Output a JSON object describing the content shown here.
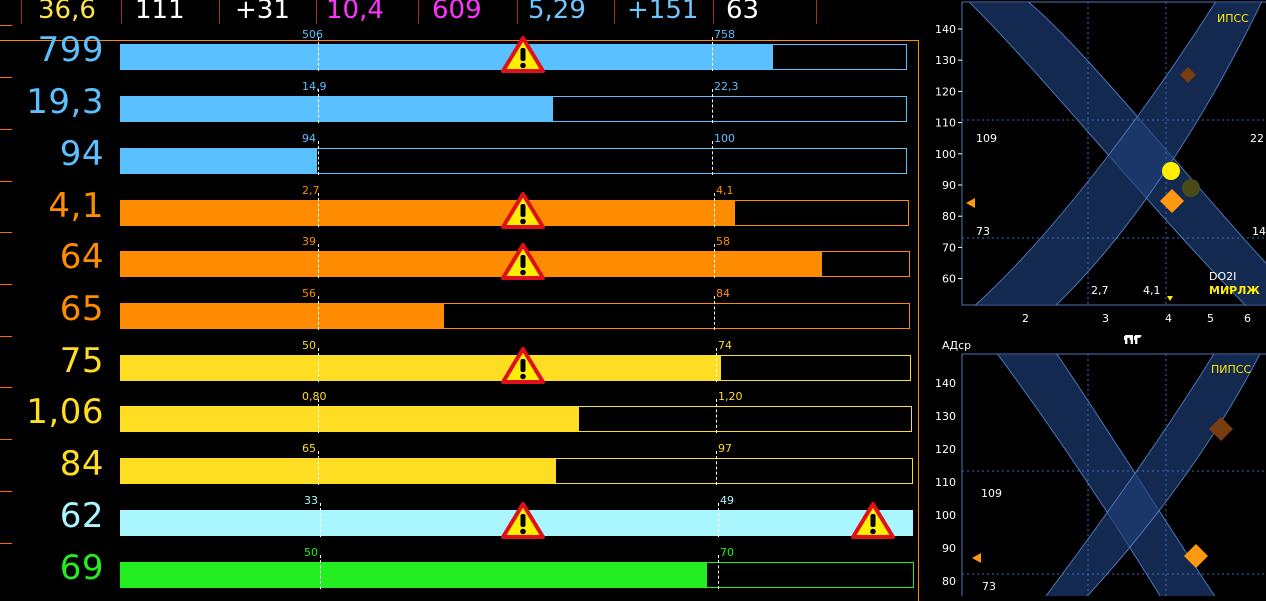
{
  "top_values": [
    {
      "text": "36,6",
      "color": "#ffe34d"
    },
    {
      "text": "111",
      "color": "#ffffff"
    },
    {
      "text": "+31",
      "color": "#ffffff"
    },
    {
      "text": "10,4",
      "color": "#ff33ff"
    },
    {
      "text": "609",
      "color": "#ff33ff"
    },
    {
      "text": "5,29",
      "color": "#6ec6ff"
    },
    {
      "text": "+151",
      "color": "#6ec6ff"
    },
    {
      "text": "63",
      "color": "#ffffff"
    }
  ],
  "rows": [
    {
      "value": "799",
      "color": "#5bc0ff",
      "low": "506",
      "high": "758",
      "fill": 0.83,
      "warn": [
        true,
        false
      ]
    },
    {
      "value": "19,3",
      "color": "#5bc0ff",
      "low": "14,9",
      "high": "22,3",
      "fill": 0.55,
      "warn": [
        false,
        false
      ]
    },
    {
      "value": "94",
      "color": "#5bc0ff",
      "low": "94",
      "high": "100",
      "fill": 0.25,
      "warn": [
        false,
        false
      ]
    },
    {
      "value": "4,1",
      "color": "#ff8c00",
      "low": "2,7",
      "high": "4,1",
      "fill": 0.78,
      "warn": [
        true,
        false
      ]
    },
    {
      "value": "64",
      "color": "#ff8c00",
      "low": "39",
      "high": "58",
      "fill": 0.89,
      "warn": [
        true,
        false
      ]
    },
    {
      "value": "65",
      "color": "#ff8c00",
      "low": "56",
      "high": "84",
      "fill": 0.41,
      "warn": [
        false,
        false
      ]
    },
    {
      "value": "75",
      "color": "#ffdd22",
      "low": "50",
      "high": "74",
      "fill": 0.76,
      "warn": [
        true,
        false
      ]
    },
    {
      "value": "1,06",
      "color": "#ffdd22",
      "low": "0,80",
      "high": "1,20",
      "fill": 0.58,
      "warn": [
        false,
        false
      ]
    },
    {
      "value": "84",
      "color": "#ffdd22",
      "low": "65",
      "high": "97",
      "fill": 0.55,
      "warn": [
        false,
        false
      ]
    },
    {
      "value": "62",
      "color": "#aaf6ff",
      "low": "33",
      "high": "49",
      "fill": 1.0,
      "warn": [
        true,
        true
      ]
    },
    {
      "value": "69",
      "color": "#22ee22",
      "low": "50",
      "high": "70",
      "fill": 0.74,
      "warn": [
        false,
        false
      ]
    }
  ],
  "chart_top": {
    "corner_label": "ИПСС",
    "y_ticks": [
      "140",
      "130",
      "120",
      "110",
      "100",
      "90",
      "80",
      "70",
      "60"
    ],
    "x_ticks": [
      "2",
      "3",
      "4",
      "5",
      "6"
    ],
    "left_high": "109",
    "left_low": "73",
    "right_high": "22",
    "right_low": "14",
    "bottom_low": "2,7",
    "bottom_high": "4,1",
    "legend_1": "DO2I",
    "legend_2": "МИРЛЖ",
    "x_axis_label": "ПГ"
  },
  "chart_bottom": {
    "corner_label": "ПИПСС",
    "y_label": "АДср",
    "y_ticks": [
      "140",
      "130",
      "120",
      "110",
      "100",
      "90",
      "80"
    ],
    "left_high": "109",
    "left_low": "73"
  }
}
